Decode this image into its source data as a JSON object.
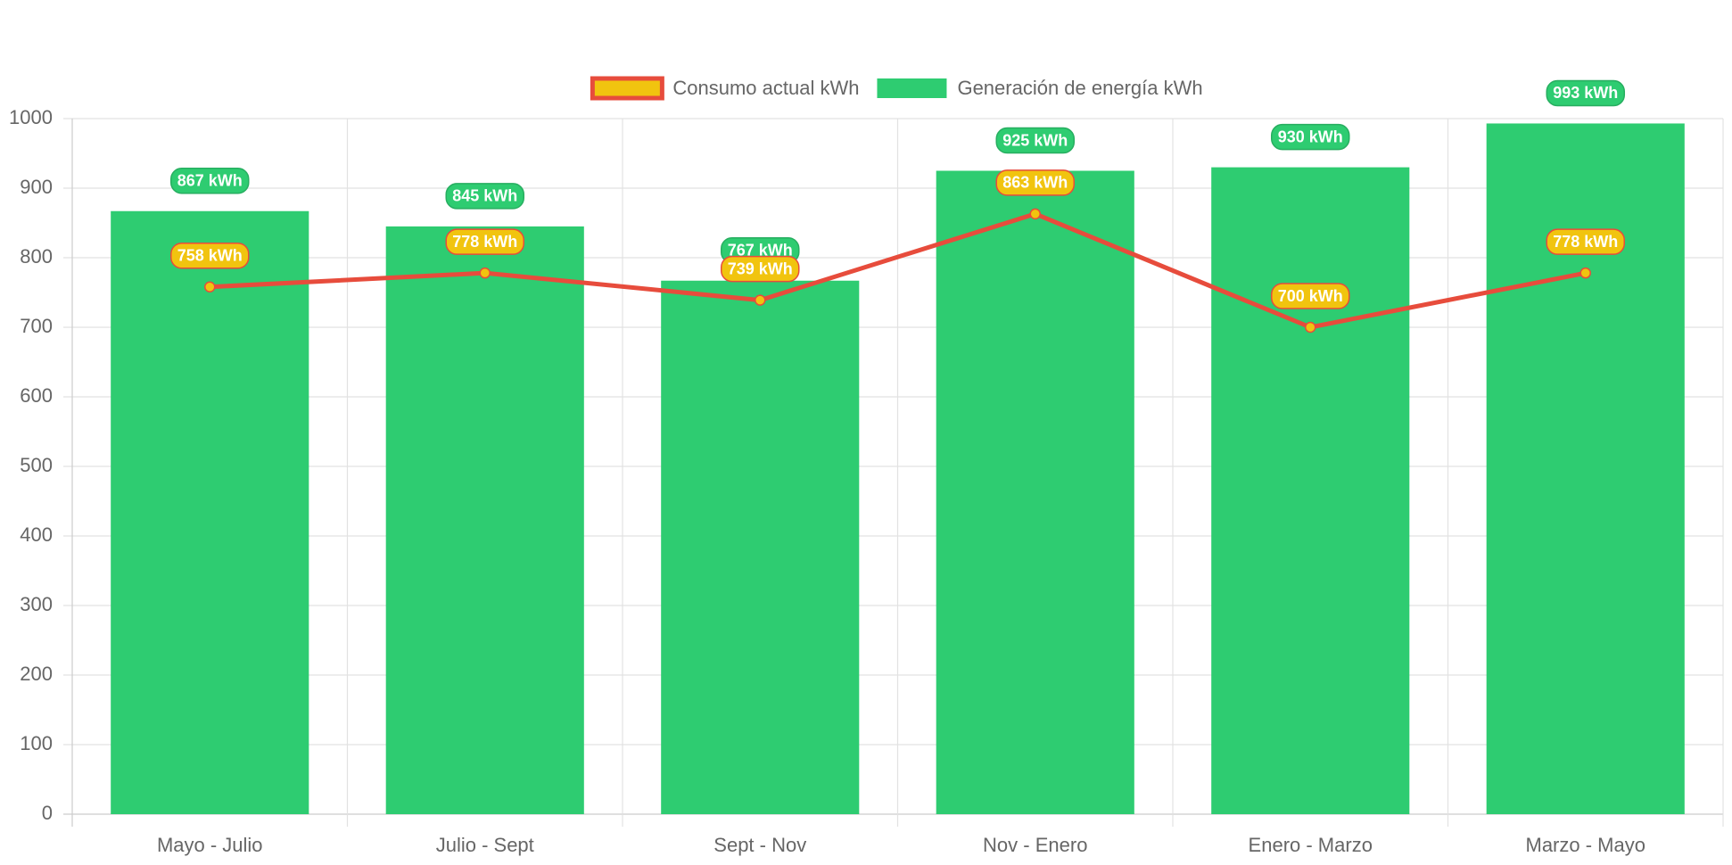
{
  "chart_data": {
    "type": "bar",
    "categories": [
      "Mayo - Julio",
      "Julio - Sept",
      "Sept - Nov",
      "Nov - Enero",
      "Enero - Marzo",
      "Marzo - Mayo"
    ],
    "series": [
      {
        "name": "Consumo actual kWh",
        "type": "line",
        "color": "#e74c3c",
        "point_color": "#f1c40f",
        "values": [
          758,
          778,
          739,
          863,
          700,
          778
        ],
        "value_labels": [
          "758 kWh",
          "778 kWh",
          "739 kWh",
          "863 kWh",
          "700 kWh",
          "778 kWh"
        ]
      },
      {
        "name": "Generación de energía kWh",
        "type": "bar",
        "color": "#2ecc71",
        "values": [
          867,
          845,
          767,
          925,
          930,
          993
        ],
        "value_labels": [
          "867 kWh",
          "845 kWh",
          "767 kWh",
          "925 kWh",
          "930 kWh",
          "993 kWh"
        ]
      }
    ],
    "ylim": [
      0,
      1000
    ],
    "yticks": [
      0,
      100,
      200,
      300,
      400,
      500,
      600,
      700,
      800,
      900,
      1000
    ],
    "grid": true,
    "legend": "top"
  }
}
